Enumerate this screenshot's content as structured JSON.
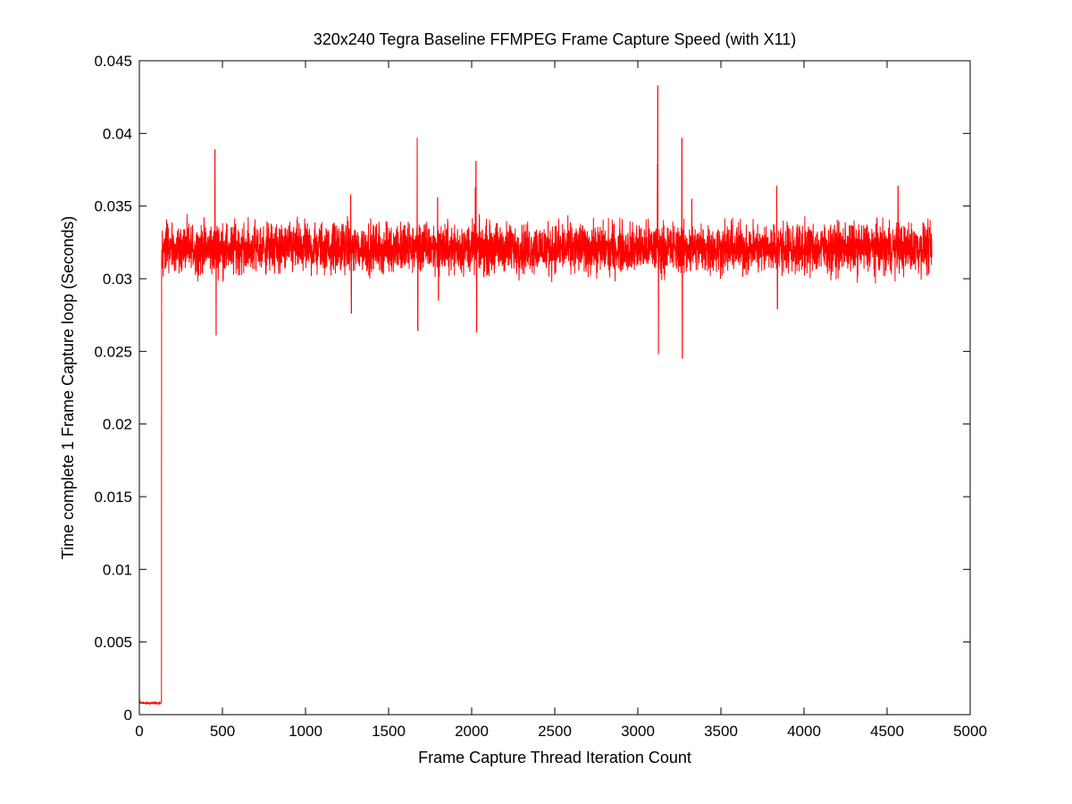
{
  "chart_data": {
    "type": "line",
    "title": "320x240 Tegra Baseline FFMPEG Frame Capture Speed (with X11)",
    "xlabel": "Frame Capture Thread Iteration Count",
    "ylabel": "Time complete 1 Frame Capture loop (Seconds)",
    "xlim": [
      0,
      5000
    ],
    "ylim": [
      0,
      0.045
    ],
    "x_ticks": [
      0,
      500,
      1000,
      1500,
      2000,
      2500,
      3000,
      3500,
      4000,
      4500,
      5000
    ],
    "y_ticks": [
      0,
      0.005,
      0.01,
      0.015,
      0.02,
      0.025,
      0.03,
      0.035,
      0.04,
      0.045
    ],
    "x_tick_labels": [
      "0",
      "500",
      "1000",
      "1500",
      "2000",
      "2500",
      "3000",
      "3500",
      "4000",
      "4500",
      "5000"
    ],
    "y_tick_labels": [
      "0",
      "0.005",
      "0.01",
      "0.015",
      "0.02",
      "0.025",
      "0.03",
      "0.035",
      "0.04",
      "0.045"
    ],
    "grid": false,
    "legend": "none",
    "series_color": "#ff0000",
    "series": [
      {
        "x_range": [
          1,
          4770
        ],
        "initial_segment": {
          "x_range": [
            1,
            133
          ],
          "level": 0.0008,
          "first_value": 0.0011
        },
        "steady_state": {
          "x_range": [
            134,
            4770
          ],
          "mean": 0.0321,
          "typical_min": 0.0304,
          "typical_max": 0.0338
        },
        "spikes": [
          {
            "x": 455,
            "y": 0.0389
          },
          {
            "x": 462,
            "y": 0.0261
          },
          {
            "x": 1272,
            "y": 0.0358
          },
          {
            "x": 1276,
            "y": 0.0276
          },
          {
            "x": 1672,
            "y": 0.0397
          },
          {
            "x": 1676,
            "y": 0.0264
          },
          {
            "x": 1795,
            "y": 0.0356
          },
          {
            "x": 1800,
            "y": 0.0285
          },
          {
            "x": 2022,
            "y": 0.0363
          },
          {
            "x": 2026,
            "y": 0.0381
          },
          {
            "x": 2030,
            "y": 0.0263
          },
          {
            "x": 3118,
            "y": 0.0379
          },
          {
            "x": 3120,
            "y": 0.0433
          },
          {
            "x": 3124,
            "y": 0.0248
          },
          {
            "x": 3265,
            "y": 0.0397
          },
          {
            "x": 3268,
            "y": 0.0245
          },
          {
            "x": 3325,
            "y": 0.0355
          },
          {
            "x": 3836,
            "y": 0.0364
          },
          {
            "x": 3840,
            "y": 0.0279
          },
          {
            "x": 4566,
            "y": 0.0364
          }
        ]
      }
    ]
  }
}
